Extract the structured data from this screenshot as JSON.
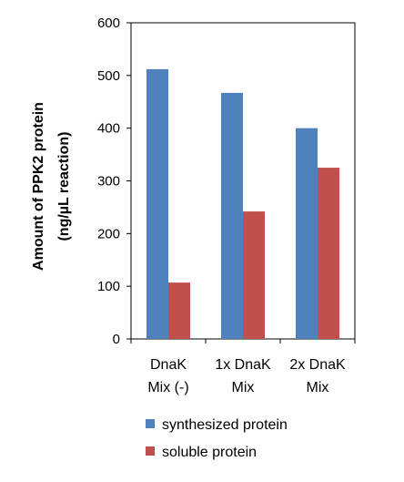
{
  "chart_data": {
    "type": "bar",
    "categories": [
      [
        "DnaK",
        "Mix (-)"
      ],
      [
        "1x DnaK",
        "Mix"
      ],
      [
        "2x DnaK",
        "Mix"
      ]
    ],
    "series": [
      {
        "name": "synthesized protein",
        "color": "#4f81bd",
        "values": [
          512,
          467,
          400
        ]
      },
      {
        "name": "soluble protein",
        "color": "#c0504d",
        "values": [
          107,
          242,
          325
        ]
      }
    ],
    "title": "",
    "xlabel": "",
    "ylabel": [
      "Amount of PPK2 protein",
      "(ng/µL reaction)"
    ],
    "ylim": [
      0,
      600
    ],
    "yticks": [
      0,
      100,
      200,
      300,
      400,
      500,
      600
    ],
    "grid": false,
    "legend_position": "bottom"
  }
}
